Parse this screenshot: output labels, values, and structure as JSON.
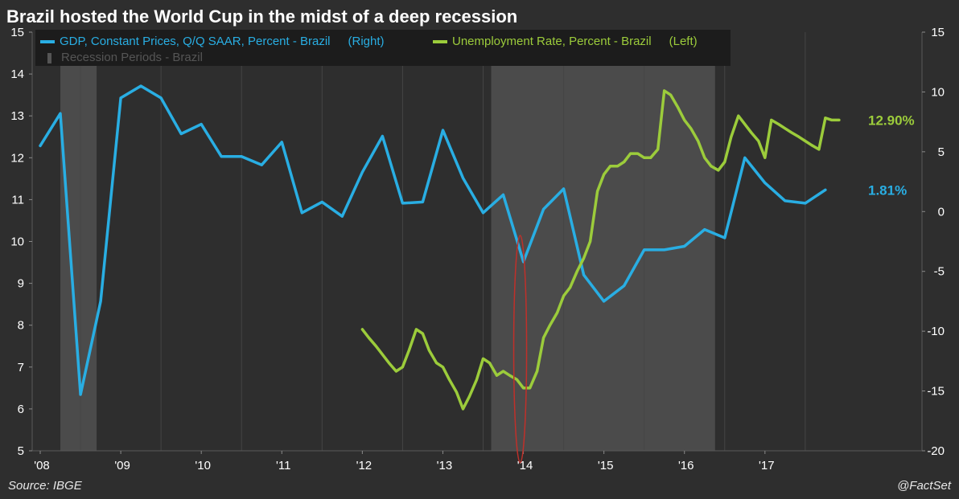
{
  "chart_title": "Brazil hosted the World Cup in the midst of a deep recession",
  "legend": {
    "gdp_label": "GDP, Constant Prices, Q/Q SAAR, Percent - Brazil",
    "gdp_side": "(Right)",
    "unemp_label": "Unemployment Rate, Percent - Brazil",
    "unemp_side": "(Left)",
    "recession_label": "Recession Periods - Brazil"
  },
  "footer": {
    "source": "Source: IBGE",
    "credit": "@FactSet"
  },
  "colors": {
    "gdp": "#29aee3",
    "unemployment": "#9ccc3b",
    "recession": "#4b4b4b",
    "background": "#2e2e2e",
    "annotation": "#c0302a"
  },
  "chart_data": {
    "type": "line",
    "x_ticks": [
      "'08",
      "'09",
      "'10",
      "'11",
      "'12",
      "'13",
      "'14",
      "'15",
      "'16",
      "'17"
    ],
    "x_tick_years": [
      2008,
      2009,
      2010,
      2011,
      2012,
      2013,
      2014,
      2015,
      2016,
      2017
    ],
    "xlim": [
      2007.9,
      2018.95
    ],
    "y_left": {
      "ylim": [
        5,
        15
      ],
      "ticks": [
        5,
        6,
        7,
        8,
        9,
        10,
        11,
        12,
        13,
        14,
        15
      ]
    },
    "y_right": {
      "ylim": [
        -20,
        15
      ],
      "ticks": [
        -20,
        -15,
        -10,
        -5,
        0,
        5,
        10,
        15
      ]
    },
    "recession_periods": [
      [
        2008.25,
        2008.7
      ],
      [
        2013.6,
        2016.38
      ]
    ],
    "annotation_ellipse": {
      "center": [
        2013.96,
        -11.5
      ],
      "x_radius": 0.08,
      "y_radius": 9.5
    },
    "series": [
      {
        "name": "GDP, Constant Prices, Q/Q SAAR, Percent - Brazil",
        "axis": "right",
        "x": [
          2008.0,
          2008.25,
          2008.5,
          2008.75,
          2009.0,
          2009.25,
          2009.5,
          2009.75,
          2010.0,
          2010.25,
          2010.5,
          2010.75,
          2011.0,
          2011.25,
          2011.5,
          2011.75,
          2012.0,
          2012.25,
          2012.5,
          2012.75,
          2013.0,
          2013.25,
          2013.5,
          2013.75,
          2014.0,
          2014.25,
          2014.5,
          2014.75,
          2015.0,
          2015.25,
          2015.5,
          2015.75,
          2016.0,
          2016.25,
          2016.5,
          2016.75,
          2017.0,
          2017.25,
          2017.5,
          2017.75
        ],
        "values": [
          5.5,
          8.2,
          -15.3,
          -7.5,
          9.5,
          10.5,
          9.5,
          6.5,
          7.3,
          4.6,
          4.6,
          3.9,
          5.8,
          -0.1,
          0.8,
          -0.4,
          3.3,
          6.3,
          0.7,
          0.8,
          6.8,
          2.8,
          -0.1,
          1.4,
          -4.2,
          0.2,
          1.9,
          -5.3,
          -7.5,
          -6.2,
          -3.2,
          -3.2,
          -2.9,
          -1.5,
          -2.2,
          4.5,
          2.4,
          0.9,
          0.7,
          1.81
        ]
      },
      {
        "name": "Unemployment Rate, Percent - Brazil",
        "axis": "left",
        "x": [
          2012.0,
          2012.08,
          2012.17,
          2012.25,
          2012.33,
          2012.42,
          2012.5,
          2012.58,
          2012.67,
          2012.75,
          2012.83,
          2012.92,
          2013.0,
          2013.08,
          2013.17,
          2013.25,
          2013.33,
          2013.42,
          2013.5,
          2013.58,
          2013.67,
          2013.75,
          2013.83,
          2013.92,
          2014.0,
          2014.08,
          2014.17,
          2014.25,
          2014.33,
          2014.42,
          2014.5,
          2014.58,
          2014.67,
          2014.75,
          2014.83,
          2014.92,
          2015.0,
          2015.08,
          2015.17,
          2015.25,
          2015.33,
          2015.42,
          2015.5,
          2015.58,
          2015.67,
          2015.75,
          2015.83,
          2015.92,
          2016.0,
          2016.08,
          2016.17,
          2016.25,
          2016.33,
          2016.42,
          2016.5,
          2016.58,
          2016.67,
          2016.75,
          2016.83,
          2016.92,
          2017.0,
          2017.08,
          2017.17,
          2017.25,
          2017.33,
          2017.42,
          2017.5,
          2017.58,
          2017.67,
          2017.75,
          2017.83,
          2017.92
        ],
        "values": [
          7.9,
          7.7,
          7.5,
          7.3,
          7.1,
          6.9,
          7.0,
          7.4,
          7.9,
          7.8,
          7.4,
          7.1,
          7.0,
          6.7,
          6.4,
          6.0,
          6.3,
          6.7,
          7.2,
          7.1,
          6.8,
          6.9,
          6.8,
          6.7,
          6.5,
          6.5,
          6.9,
          7.7,
          8.0,
          8.3,
          8.7,
          8.9,
          9.3,
          9.6,
          10.0,
          11.2,
          11.6,
          11.8,
          11.8,
          11.9,
          12.1,
          12.1,
          12.0,
          12.0,
          12.2,
          13.6,
          13.5,
          13.2,
          12.9,
          12.7,
          12.4,
          12.0,
          11.8,
          11.7,
          11.9,
          12.5,
          13.0,
          12.8,
          12.6,
          12.4,
          12.0,
          12.9,
          12.8,
          12.7,
          12.6,
          12.5,
          12.4,
          12.3,
          12.2,
          12.95,
          12.9,
          12.9
        ]
      }
    ],
    "end_labels": {
      "unemployment": "12.90%",
      "gdp": "1.81%"
    }
  }
}
